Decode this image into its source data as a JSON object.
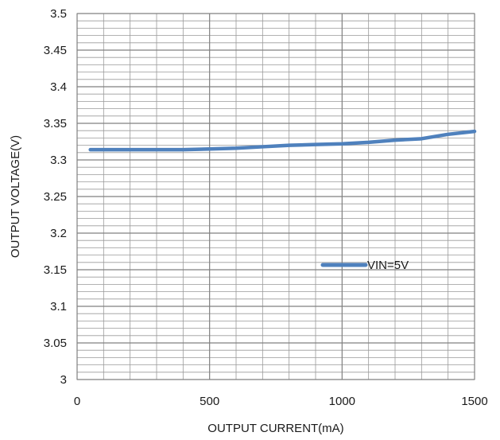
{
  "colors": {
    "series": "#4f81bd",
    "major_grid": "#808080",
    "minor_grid": "#9a9a9a",
    "background": "#ffffff",
    "text": "#1a1a1a"
  },
  "chart_data": {
    "type": "line",
    "title": "",
    "xlabel": "OUTPUT CURRENT(mA)",
    "ylabel": "OUTPUT VOLTAGE(V)",
    "xlim": [
      0,
      1500
    ],
    "ylim": [
      3,
      3.5
    ],
    "x_ticks": [
      0,
      500,
      1000,
      1500
    ],
    "x_tick_labels": [
      "0",
      "500",
      "1000",
      "1500"
    ],
    "y_ticks": [
      3,
      3.05,
      3.1,
      3.15,
      3.2,
      3.25,
      3.3,
      3.35,
      3.4,
      3.45,
      3.5
    ],
    "y_tick_labels": [
      "3",
      "3.05",
      "3.1",
      "3.15",
      "3.2",
      "3.25",
      "3.3",
      "3.35",
      "3.4",
      "3.45",
      "3.5"
    ],
    "grid": true,
    "minor_grid": true,
    "legend_position": "right-middle",
    "series": [
      {
        "name": "VIN=5V",
        "x": [
          50,
          100,
          200,
          300,
          400,
          500,
          600,
          700,
          800,
          900,
          1000,
          1100,
          1200,
          1300,
          1400,
          1500
        ],
        "values": [
          3.314,
          3.314,
          3.314,
          3.314,
          3.314,
          3.315,
          3.316,
          3.318,
          3.32,
          3.321,
          3.322,
          3.324,
          3.327,
          3.329,
          3.335,
          3.339
        ]
      }
    ]
  }
}
